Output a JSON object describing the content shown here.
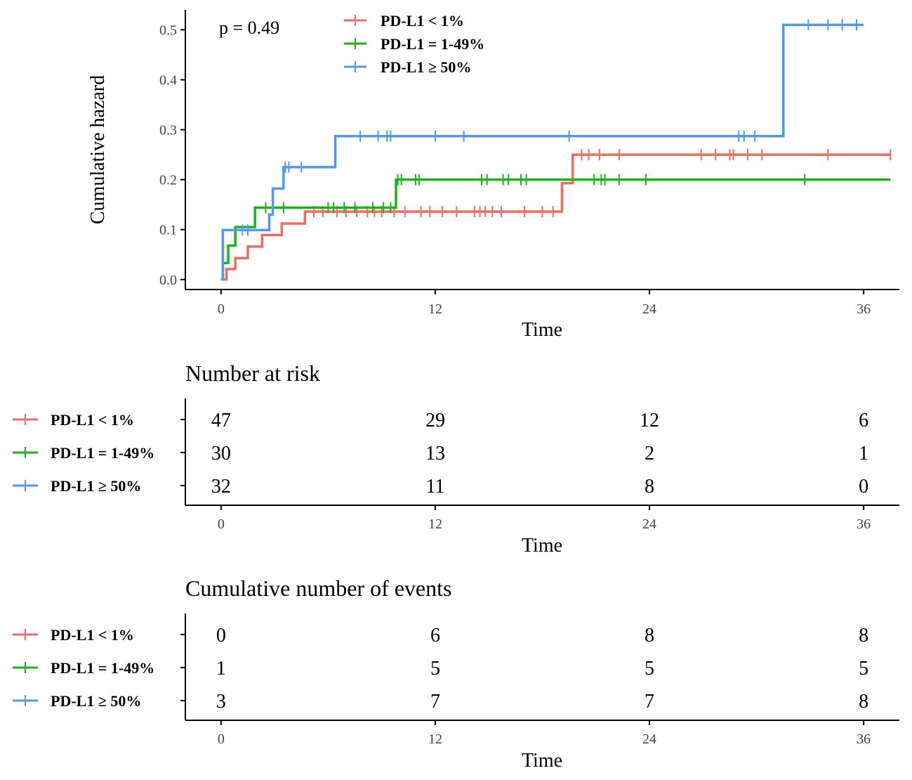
{
  "colors": {
    "low": "#F06B64",
    "mid": "#1CB21C",
    "high": "#5796EE"
  },
  "chart_data": {
    "type": "line",
    "subtype": "cumulative-hazard-step",
    "title": "",
    "xlabel": "Time",
    "ylabel": "Cumulative hazard",
    "annotation": "p = 0.49",
    "xlim": [
      -2,
      38
    ],
    "ylim": [
      -0.02,
      0.54
    ],
    "xticks": [
      0,
      12,
      24,
      36
    ],
    "xtick_labels": [
      "0",
      "12",
      "24",
      "36"
    ],
    "yticks": [
      0.0,
      0.1,
      0.2,
      0.3,
      0.4,
      0.5
    ],
    "ytick_labels": [
      "0.0",
      "0.1",
      "0.2",
      "0.3",
      "0.4",
      "0.5"
    ],
    "grid": false,
    "legend_position": "top-center",
    "series": [
      {
        "key": "low",
        "name": "PD-L1 < 1%",
        "steps": [
          [
            0,
            0.0
          ],
          [
            0.3,
            0.021
          ],
          [
            0.8,
            0.043
          ],
          [
            1.5,
            0.066
          ],
          [
            2.3,
            0.089
          ],
          [
            3.4,
            0.112
          ],
          [
            4.7,
            0.136
          ],
          [
            19.1,
            0.193
          ],
          [
            19.7,
            0.25
          ],
          [
            37.5,
            0.25
          ]
        ],
        "censors": [
          5.2,
          5.7,
          6.5,
          7.0,
          7.6,
          8.2,
          8.6,
          9.0,
          9.7,
          10.3,
          11.2,
          11.7,
          12.4,
          13.2,
          14.2,
          14.5,
          14.8,
          15.2,
          15.7,
          17.0,
          18.0,
          18.6,
          20.2,
          20.6,
          21.2,
          22.3,
          26.9,
          27.7,
          28.5,
          28.7,
          29.5,
          30.3,
          34.0,
          37.5
        ]
      },
      {
        "key": "mid",
        "name": "PD-L1 = 1-49%",
        "steps": [
          [
            0,
            0.0
          ],
          [
            0.1,
            0.033
          ],
          [
            0.4,
            0.068
          ],
          [
            0.8,
            0.105
          ],
          [
            1.9,
            0.144
          ],
          [
            9.8,
            0.2
          ],
          [
            37.5,
            0.2
          ]
        ],
        "censors": [
          2.5,
          3.5,
          6.0,
          6.3,
          6.9,
          7.5,
          8.5,
          9.1,
          9.5,
          9.9,
          10.1,
          10.9,
          11.1,
          14.6,
          14.9,
          15.8,
          16.1,
          16.8,
          17.1,
          20.9,
          21.3,
          21.5,
          22.3,
          23.8,
          32.7
        ]
      },
      {
        "key": "high",
        "name": "PD-L1 ≥ 50%",
        "steps": [
          [
            0,
            0.0
          ],
          [
            0.1,
            0.099
          ],
          [
            2.7,
            0.13
          ],
          [
            2.9,
            0.182
          ],
          [
            3.5,
            0.225
          ],
          [
            6.4,
            0.287
          ],
          [
            31.5,
            0.51
          ],
          [
            36,
            0.51
          ]
        ],
        "censors": [
          1.2,
          1.5,
          3.6,
          3.8,
          4.5,
          7.8,
          8.8,
          9.3,
          9.5,
          12.0,
          13.6,
          19.5,
          29.0,
          29.3,
          29.9,
          32.9,
          34.0,
          34.8,
          35.6
        ]
      }
    ],
    "risk_table": {
      "title": "Number at risk",
      "xlabel": "Time",
      "times": [
        0,
        12,
        24,
        36
      ],
      "time_labels": [
        "0",
        "12",
        "24",
        "36"
      ],
      "rows": [
        {
          "key": "low",
          "name": "PD-L1 < 1%",
          "values": [
            "47",
            "29",
            "12",
            "6"
          ]
        },
        {
          "key": "mid",
          "name": "PD-L1 = 1-49%",
          "values": [
            "30",
            "13",
            "2",
            "1"
          ]
        },
        {
          "key": "high",
          "name": "PD-L1 ≥ 50%",
          "values": [
            "32",
            "11",
            "8",
            "0"
          ]
        }
      ]
    },
    "events_table": {
      "title": "Cumulative number of events",
      "xlabel": "Time",
      "times": [
        0,
        12,
        24,
        36
      ],
      "time_labels": [
        "0",
        "12",
        "24",
        "36"
      ],
      "rows": [
        {
          "key": "low",
          "name": "PD-L1 < 1%",
          "values": [
            "0",
            "6",
            "8",
            "8"
          ]
        },
        {
          "key": "mid",
          "name": "PD-L1 = 1-49%",
          "values": [
            "1",
            "5",
            "5",
            "5"
          ]
        },
        {
          "key": "high",
          "name": "PD-L1 ≥ 50%",
          "values": [
            "3",
            "7",
            "7",
            "8"
          ]
        }
      ]
    }
  }
}
